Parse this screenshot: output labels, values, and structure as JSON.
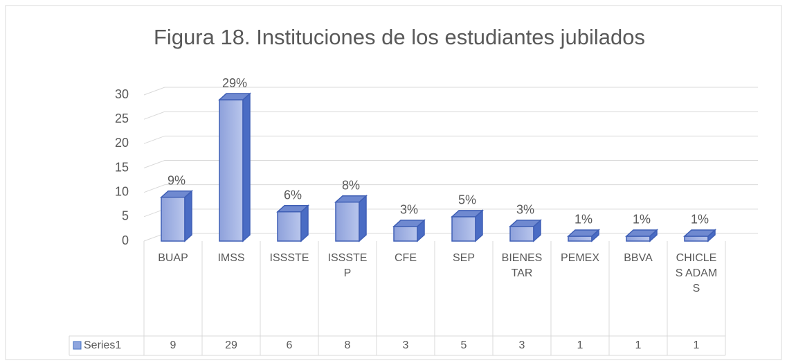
{
  "chart_data": {
    "type": "bar3d",
    "title": "Figura 18. Instituciones de los estudiantes jubilados",
    "categories": [
      "BUAP",
      "IMSS",
      "ISSSTE",
      "ISSSTEP",
      "CFE",
      "SEP",
      "BIENESTAR",
      "PEMEX",
      "BBVA",
      "CHICLES ADAMS"
    ],
    "series": [
      {
        "name": "Series1",
        "color": "#8ea5de",
        "values": [
          9,
          29,
          6,
          8,
          3,
          5,
          3,
          1,
          1,
          1
        ],
        "value_labels": [
          "9%",
          "29%",
          "6%",
          "8%",
          "3%",
          "5%",
          "3%",
          "1%",
          "1%",
          "1%"
        ]
      }
    ],
    "ylim": [
      0,
      30
    ],
    "yticks": [
      0,
      5,
      10,
      15,
      20,
      25,
      30
    ],
    "grid": true,
    "data_table": true
  }
}
